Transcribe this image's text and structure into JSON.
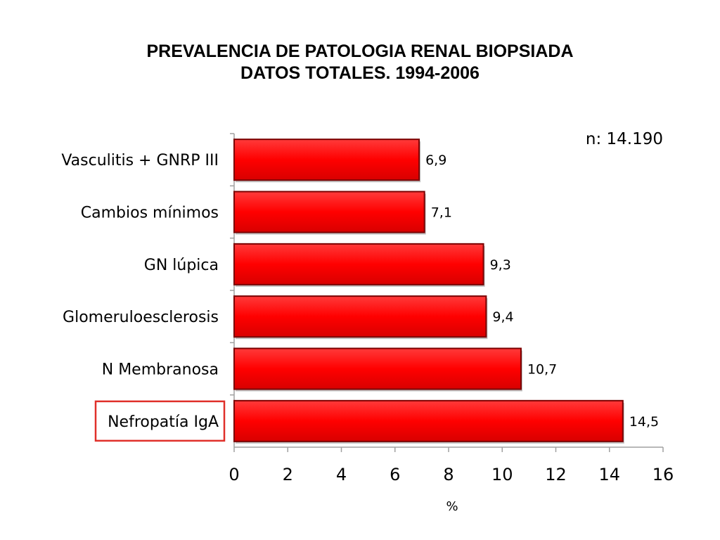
{
  "chart_data": {
    "type": "bar",
    "orientation": "horizontal",
    "title": "PREVALENCIA DE PATOLOGIA RENAL BIOPSIADA",
    "subtitle": "DATOS TOTALES. 1994-2006",
    "annotation": "n: 14.190",
    "xlabel": "%",
    "categories": [
      "Vasculitis + GNRP III",
      "Cambios mínimos",
      "GN lúpica",
      "Glomeruloesclerosis",
      "N  Membranosa",
      "Nefropatía IgA"
    ],
    "values": [
      6.9,
      7.1,
      9.3,
      9.4,
      10.7,
      14.5
    ],
    "value_labels": [
      "6,9",
      "7,1",
      "9,3",
      "9,4",
      "10,7",
      "14,5"
    ],
    "xlim": [
      0,
      16
    ],
    "ticks": [
      "0",
      "2",
      "4",
      "6",
      "8",
      "10",
      "12",
      "14",
      "16"
    ],
    "highlighted_category": "Nefropatía IgA",
    "bar_color": "#ff0000",
    "highlight_border_color": "#e0302a",
    "grid": false
  }
}
